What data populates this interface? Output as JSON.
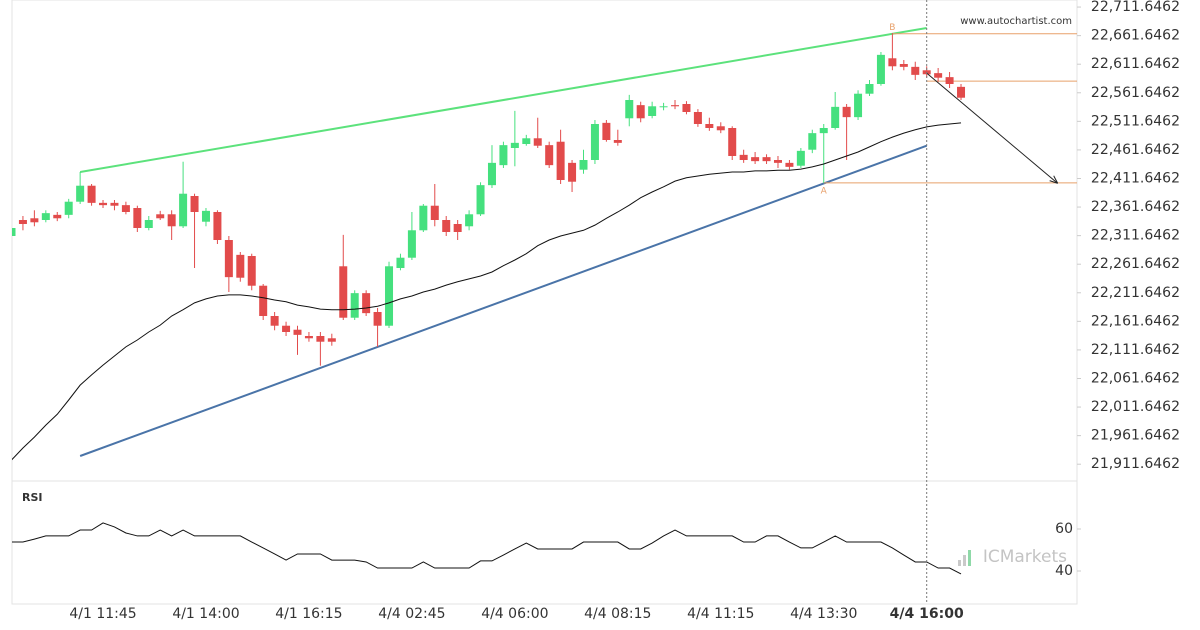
{
  "chart_data": {
    "type": "candlestick",
    "watermark": "www.autochartist.com",
    "brand": "ICMarkets",
    "up_color": "#45e07e",
    "down_color": "#e24b4b",
    "categories": [
      null,
      null,
      null,
      null,
      null,
      null,
      null,
      null,
      "4/1 11:45",
      null,
      null,
      null,
      null,
      null,
      null,
      null,
      null,
      "4/1 14:00",
      null,
      null,
      null,
      null,
      null,
      null,
      null,
      null,
      "4/1 16:15",
      null,
      null,
      null,
      null,
      null,
      null,
      null,
      null,
      "4/4 02:45",
      null,
      null,
      null,
      null,
      null,
      null,
      null,
      null,
      "4/4 06:00",
      null,
      null,
      null,
      null,
      null,
      null,
      null,
      null,
      "4/4 08:15",
      null,
      null,
      null,
      null,
      null,
      null,
      null,
      null,
      "4/4 11:15",
      null,
      null,
      null,
      null,
      null,
      null,
      null,
      null,
      "4/4 13:30",
      null,
      null,
      null,
      null,
      null,
      null,
      null,
      null,
      "4/4 16:00",
      null,
      null,
      null
    ],
    "highlight_category": 80,
    "open": [
      22311,
      22339,
      22342,
      22339,
      22348,
      22348,
      22371,
      22399,
      22369,
      22369,
      22365,
      22360,
      22325,
      22349,
      22349,
      22328,
      22381,
      22336,
      22353,
      22304,
      22278,
      22276,
      22224,
      22171,
      22154,
      22147,
      22136,
      22136,
      22132,
      22258,
      22168,
      22211,
      22178,
      22154,
      22255,
      22273,
      22321,
      22364,
      22339,
      22332,
      22328,
      22349,
      22400,
      22435,
      22465,
      22472,
      22482,
      22470,
      22476,
      22439,
      22427,
      22444,
      22509,
      22479,
      22517,
      22540,
      22521,
      22537,
      22540,
      22542,
      22528,
      22507,
      22503,
      22500,
      22453,
      22449,
      22449,
      22444,
      22439,
      22434,
      22462,
      22491,
      22500,
      22537,
      22519,
      22560,
      22577,
      22622,
      22612,
      22607,
      22601,
      22596,
      22589,
      22572
    ],
    "high": [
      22328,
      22346,
      22356,
      22356,
      22353,
      22376,
      22423,
      22402,
      22374,
      22374,
      22371,
      22364,
      22346,
      22355,
      22356,
      22441,
      22385,
      22360,
      22356,
      22311,
      22283,
      22280,
      22227,
      22178,
      22161,
      22154,
      22143,
      22143,
      22140,
      22313,
      22216,
      22216,
      22185,
      22266,
      22280,
      22353,
      22367,
      22402,
      22346,
      22339,
      22356,
      22405,
      22470,
      22476,
      22530,
      22488,
      22518,
      22476,
      22497,
      22444,
      22462,
      22514,
      22514,
      22497,
      22558,
      22546,
      22546,
      22544,
      22549,
      22547,
      22533,
      22518,
      22510,
      22503,
      22462,
      22458,
      22454,
      22451,
      22444,
      22465,
      22497,
      22507,
      22563,
      22542,
      22566,
      22584,
      22633,
      22666,
      22619,
      22616,
      22608,
      22605,
      22598,
      22577
    ],
    "low": [
      22308,
      22321,
      22328,
      22335,
      22337,
      22342,
      22367,
      22364,
      22360,
      22356,
      22349,
      22318,
      22321,
      22339,
      22304,
      22325,
      22255,
      22328,
      22297,
      22213,
      22231,
      22216,
      22164,
      22146,
      22136,
      22103,
      22126,
      22084,
      22119,
      22164,
      22164,
      22171,
      22117,
      22150,
      22251,
      22269,
      22318,
      22328,
      22311,
      22304,
      22321,
      22346,
      22395,
      22430,
      22433,
      22469,
      22465,
      22430,
      22402,
      22388,
      22420,
      22437,
      22476,
      22469,
      22503,
      22510,
      22517,
      22531,
      22533,
      22524,
      22502,
      22495,
      22491,
      22444,
      22439,
      22437,
      22437,
      22430,
      22427,
      22430,
      22456,
      22404,
      22497,
      22444,
      22514,
      22556,
      22574,
      22601,
      22601,
      22584,
      22588,
      22581,
      22570,
      22549
    ],
    "close": [
      22325,
      22332,
      22335,
      22351,
      22342,
      22371,
      22399,
      22369,
      22365,
      22364,
      22353,
      22325,
      22339,
      22342,
      22328,
      22385,
      22353,
      22355,
      22304,
      22239,
      22238,
      22224,
      22171,
      22154,
      22143,
      22138,
      22132,
      22126,
      22126,
      22168,
      22211,
      22176,
      22154,
      22258,
      22273,
      22321,
      22364,
      22339,
      22318,
      22318,
      22349,
      22400,
      22439,
      22470,
      22474,
      22482,
      22469,
      22435,
      22409,
      22406,
      22444,
      22507,
      22479,
      22474,
      22549,
      22517,
      22538,
      22538,
      22538,
      22528,
      22507,
      22500,
      22496,
      22451,
      22444,
      22442,
      22442,
      22439,
      22432,
      22460,
      22491,
      22500,
      22537,
      22519,
      22560,
      22577,
      22628,
      22608,
      22607,
      22593,
      22594,
      22588,
      22577,
      22553
    ],
    "ma": {
      "color": "#111111",
      "values": [
        21919,
        21940,
        21959,
        21980,
        21999,
        22024,
        22050,
        22068,
        22085,
        22101,
        22117,
        22129,
        22143,
        22155,
        22171,
        22182,
        22194,
        22201,
        22206,
        22208,
        22208,
        22206,
        22203,
        22199,
        22196,
        22190,
        22187,
        22183,
        22182,
        22182,
        22183,
        22185,
        22188,
        22194,
        22201,
        22206,
        22213,
        22218,
        22225,
        22231,
        22236,
        22241,
        22248,
        22259,
        22269,
        22280,
        22294,
        22304,
        22311,
        22316,
        22321,
        22330,
        22342,
        22353,
        22365,
        22378,
        22388,
        22397,
        22407,
        22413,
        22416,
        22419,
        22421,
        22423,
        22423,
        22425,
        22425,
        22426,
        22426,
        22428,
        22432,
        22437,
        22444,
        22451,
        22458,
        22467,
        22476,
        22484,
        22491,
        22497,
        22502,
        22505,
        22507,
        22509
      ]
    },
    "ylim": [
      21884,
      22724
    ],
    "yticks": [
      {
        "value": 22711.6462,
        "label": "22,711.6462"
      },
      {
        "value": 22661.6462,
        "label": "22,661.6462"
      },
      {
        "value": 22611.6462,
        "label": "22,611.6462"
      },
      {
        "value": 22561.6462,
        "label": "22,561.6462"
      },
      {
        "value": 22511.6462,
        "label": "22,511.6462"
      },
      {
        "value": 22461.6462,
        "label": "22,461.6462"
      },
      {
        "value": 22411.6462,
        "label": "22,411.6462"
      },
      {
        "value": 22361.6462,
        "label": "22,361.6462"
      },
      {
        "value": 22311.6462,
        "label": "22,311.6462"
      },
      {
        "value": 22261.6462,
        "label": "22,261.6462"
      },
      {
        "value": 22211.6462,
        "label": "22,211.6462"
      },
      {
        "value": 22161.6462,
        "label": "22,161.6462"
      },
      {
        "value": 22111.6462,
        "label": "22,111.6462"
      },
      {
        "value": 22061.6462,
        "label": "22,061.6462"
      },
      {
        "value": 22011.6462,
        "label": "22,011.6462"
      },
      {
        "value": 21961.6462,
        "label": "21,961.6462"
      },
      {
        "value": 21911.6462,
        "label": "21,911.6462"
      }
    ],
    "pattern": {
      "resistance": {
        "color": "#5ce27c",
        "start": [
          6,
          22423
        ],
        "end": [
          80,
          22675
        ]
      },
      "support": {
        "color": "#4a74a8",
        "start": [
          6,
          21926
        ],
        "end": [
          80,
          22469
        ]
      },
      "level_color": "#e8a06a",
      "levels": [
        {
          "value": 22665,
          "from": 77
        },
        {
          "value": 22582,
          "from": 80
        },
        {
          "value": 22404,
          "from": 71
        }
      ],
      "a_label": "A",
      "a_point": [
        71,
        22390
      ],
      "b_label": "B",
      "b_point": [
        77,
        22676
      ],
      "arrow": {
        "from": [
          80,
          22596
        ],
        "to": [
          91.4,
          22404
        ]
      }
    },
    "rsi": {
      "label": "RSI",
      "color": "#111111",
      "ylim": [
        25,
        80
      ],
      "yticks": [
        40,
        60
      ],
      "values": [
        53.8,
        53.8,
        55.2,
        56.7,
        56.7,
        56.7,
        59.5,
        59.5,
        62.9,
        61,
        58.1,
        56.7,
        56.7,
        59.5,
        56.7,
        59.5,
        56.7,
        56.7,
        56.7,
        56.7,
        56.7,
        53.8,
        51,
        48.1,
        45.2,
        48.1,
        48.1,
        48.1,
        45.2,
        45.2,
        45.2,
        44.3,
        41.4,
        41.4,
        41.4,
        41.4,
        44.3,
        41.4,
        41.4,
        41.4,
        41.4,
        44.8,
        44.8,
        47.6,
        50.5,
        53.3,
        50.5,
        50.5,
        50.5,
        50.5,
        53.8,
        53.8,
        53.8,
        53.8,
        50.5,
        50.5,
        53.3,
        56.7,
        59.5,
        56.7,
        56.7,
        56.7,
        56.7,
        56.7,
        53.8,
        53.8,
        56.7,
        56.7,
        53.8,
        51,
        51,
        53.8,
        56.7,
        53.8,
        53.8,
        53.8,
        53.8,
        51,
        47.6,
        44.3,
        44.3,
        41.4,
        41.4,
        38.6
      ]
    }
  }
}
